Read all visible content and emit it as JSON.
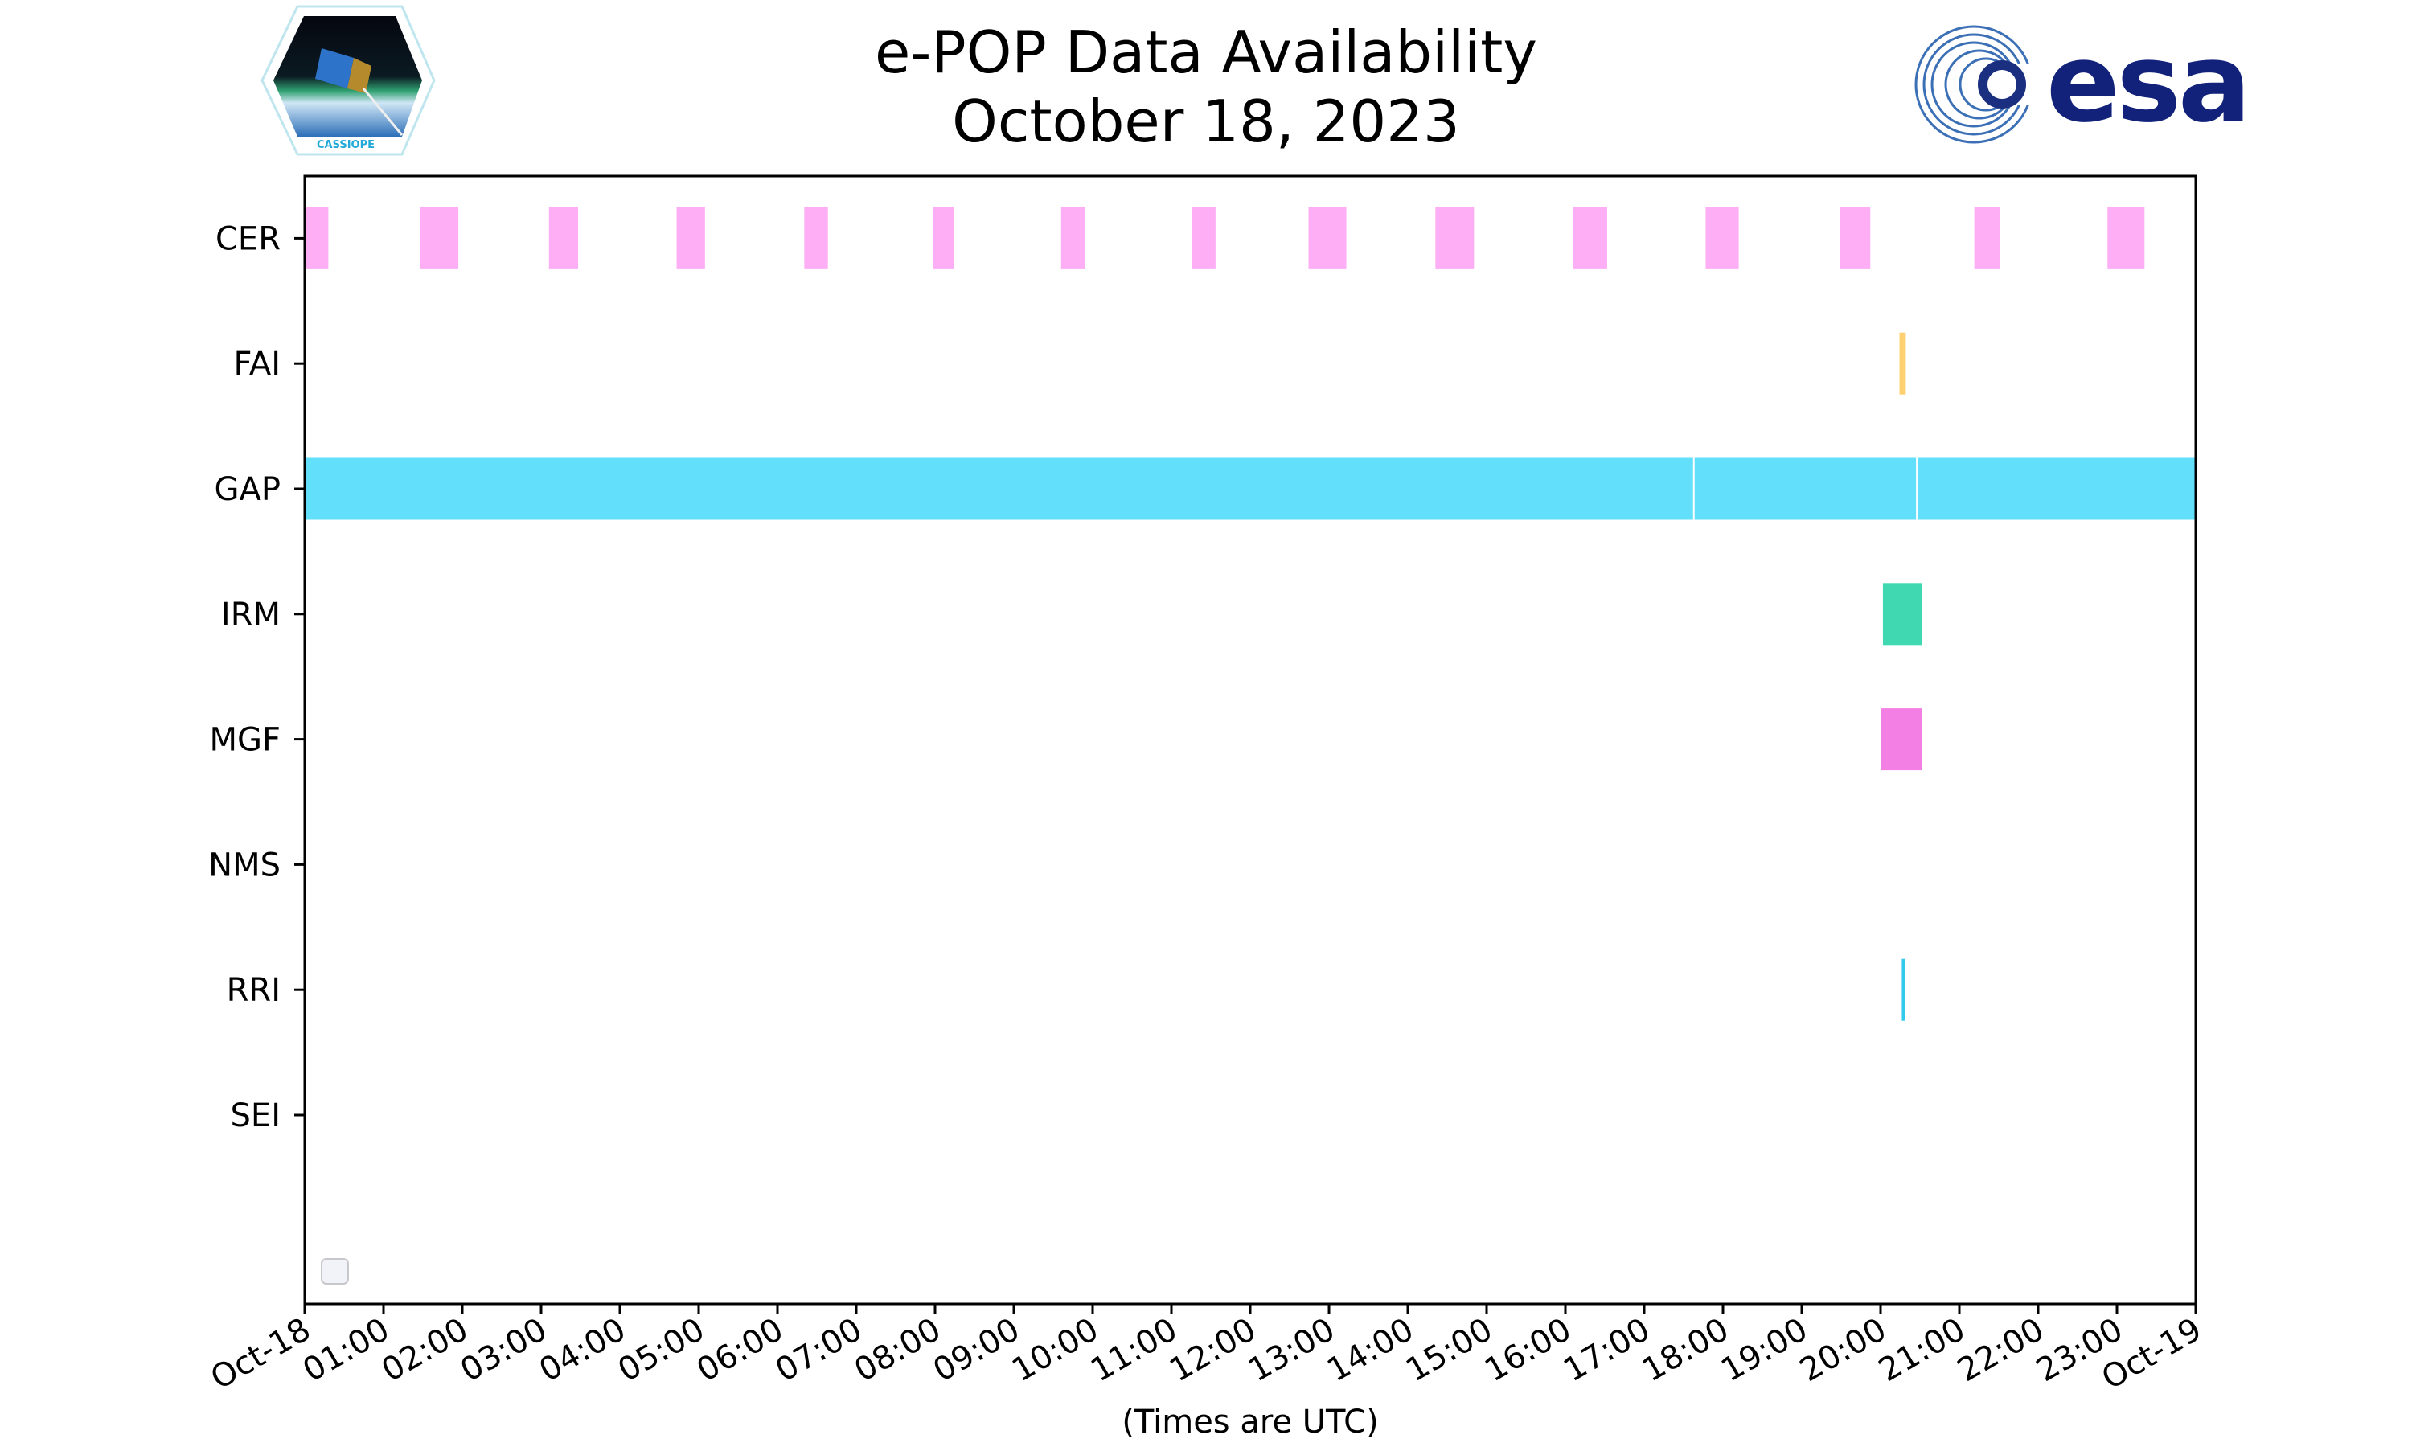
{
  "header": {
    "title_line1": "e-POP Data Availability",
    "title_line2": "October 18, 2023",
    "left_logo_text": "CASSIOPE",
    "right_logo_text": "esa"
  },
  "chart_data": {
    "type": "timeline",
    "title": "e-POP Data Availability October 18, 2023",
    "xlabel": "(Times are UTC)",
    "ylabel": "",
    "x_unit": "hours UTC",
    "xlim": [
      0,
      24
    ],
    "x_ticks": [
      "Oct-18",
      "01:00",
      "02:00",
      "03:00",
      "04:00",
      "05:00",
      "06:00",
      "07:00",
      "08:00",
      "09:00",
      "10:00",
      "11:00",
      "12:00",
      "13:00",
      "14:00",
      "15:00",
      "16:00",
      "17:00",
      "18:00",
      "19:00",
      "20:00",
      "21:00",
      "22:00",
      "23:00",
      "Oct-19"
    ],
    "legend": {
      "placement": "lower-left",
      "entries": []
    },
    "grid": false,
    "series": [
      {
        "name": "CER",
        "color": "#fdaef5",
        "intervals": [
          [
            0,
            0.3
          ],
          [
            1.46,
            1.95
          ],
          [
            3.1,
            3.47
          ],
          [
            4.72,
            5.08
          ],
          [
            6.34,
            6.64
          ],
          [
            7.97,
            8.24
          ],
          [
            9.6,
            9.9
          ],
          [
            11.26,
            11.56
          ],
          [
            12.74,
            13.22
          ],
          [
            14.35,
            14.84
          ],
          [
            16.1,
            16.53
          ],
          [
            17.78,
            18.2
          ],
          [
            19.48,
            19.87
          ],
          [
            21.19,
            21.52
          ],
          [
            22.88,
            23.35
          ]
        ]
      },
      {
        "name": "FAI",
        "color": "#ffd070",
        "intervals": [
          [
            20.24,
            20.32
          ]
        ]
      },
      {
        "name": "GAP",
        "color": "#62dffb",
        "intervals": [
          [
            0,
            17.62
          ],
          [
            17.64,
            20.45
          ],
          [
            20.47,
            24
          ]
        ]
      },
      {
        "name": "IRM",
        "color": "#3fd8b0",
        "intervals": [
          [
            20.03,
            20.53
          ]
        ]
      },
      {
        "name": "MGF",
        "color": "#f47fe4",
        "intervals": [
          [
            20.0,
            20.53
          ]
        ]
      },
      {
        "name": "NMS",
        "color": "#cccccc",
        "intervals": []
      },
      {
        "name": "RRI",
        "color": "#33c9ea",
        "intervals": [
          [
            20.27,
            20.31
          ]
        ]
      },
      {
        "name": "SEI",
        "color": "#cccccc",
        "intervals": []
      }
    ]
  }
}
